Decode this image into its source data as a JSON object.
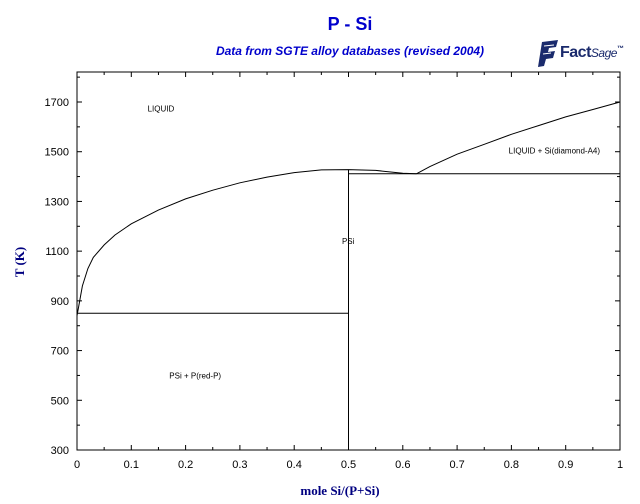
{
  "header": {
    "title": "P - Si",
    "subtitle": "Data from SGTE alloy databases (revised 2004)"
  },
  "logo": {
    "brand": "Fact",
    "suffix": "Sage",
    "mark": "™",
    "icon": "factsage-logo-icon",
    "color": "#1a2a6c"
  },
  "chart_data": {
    "type": "line",
    "title": "P - Si",
    "subtitle": "Data from SGTE alloy databases (revised 2004)",
    "xlabel": "mole Si/(P+Si)",
    "ylabel": "T (K)",
    "xlim": [
      0,
      1
    ],
    "ylim": [
      300,
      1800
    ],
    "x_ticks": [
      0,
      0.1,
      0.2,
      0.3,
      0.4,
      0.5,
      0.6,
      0.7,
      0.8,
      0.9,
      1
    ],
    "x_tick_labels": [
      "0",
      "0.1",
      "0.2",
      "0.3",
      "0.4",
      "0.5",
      "0.6",
      "0.7",
      "0.8",
      "0.9",
      "1"
    ],
    "y_ticks": [
      300,
      500,
      700,
      900,
      1100,
      1300,
      1500,
      1700
    ],
    "y_tick_labels": [
      "300",
      "500",
      "700",
      "900",
      "1100",
      "1300",
      "1500",
      "1700"
    ],
    "grid": false,
    "title_color": "#0000cc",
    "label_color": "#000080",
    "line_color": "#000000",
    "series": [
      {
        "points": [
          [
            0,
            840
          ],
          [
            0.005,
            900
          ],
          [
            0.01,
            960
          ],
          [
            0.02,
            1030
          ],
          [
            0.03,
            1075
          ],
          [
            0.05,
            1125
          ],
          [
            0.07,
            1165
          ],
          [
            0.1,
            1210
          ],
          [
            0.15,
            1265
          ],
          [
            0.2,
            1310
          ],
          [
            0.25,
            1345
          ],
          [
            0.3,
            1375
          ],
          [
            0.35,
            1398
          ],
          [
            0.4,
            1416
          ],
          [
            0.45,
            1427
          ],
          [
            0.5,
            1428
          ],
          [
            0.55,
            1425
          ],
          [
            0.58,
            1418
          ],
          [
            0.6,
            1413
          ],
          [
            0.625,
            1411
          ]
        ]
      },
      {
        "points": [
          [
            0.625,
            1411
          ],
          [
            0.65,
            1440
          ],
          [
            0.7,
            1490
          ],
          [
            0.75,
            1530
          ],
          [
            0.8,
            1570
          ],
          [
            0.85,
            1605
          ],
          [
            0.9,
            1640
          ],
          [
            0.95,
            1670
          ],
          [
            1.0,
            1700
          ]
        ]
      },
      {
        "points": [
          [
            0,
            850
          ],
          [
            0.5,
            850
          ]
        ]
      },
      {
        "points": [
          [
            0.5,
            1428
          ],
          [
            0.5,
            300
          ]
        ]
      },
      {
        "points": [
          [
            0.5,
            1411
          ],
          [
            1.0,
            1411
          ]
        ]
      }
    ],
    "annotations": [
      {
        "text": "LIQUID",
        "x": 0.13,
        "y": 1662
      },
      {
        "text": "LIQUID + Si(diamond-A4)",
        "x": 0.795,
        "y": 1492
      },
      {
        "text": "PSi",
        "x": 0.488,
        "y": 1128
      },
      {
        "text": "PSi + P(red-P)",
        "x": 0.17,
        "y": 588
      }
    ]
  }
}
